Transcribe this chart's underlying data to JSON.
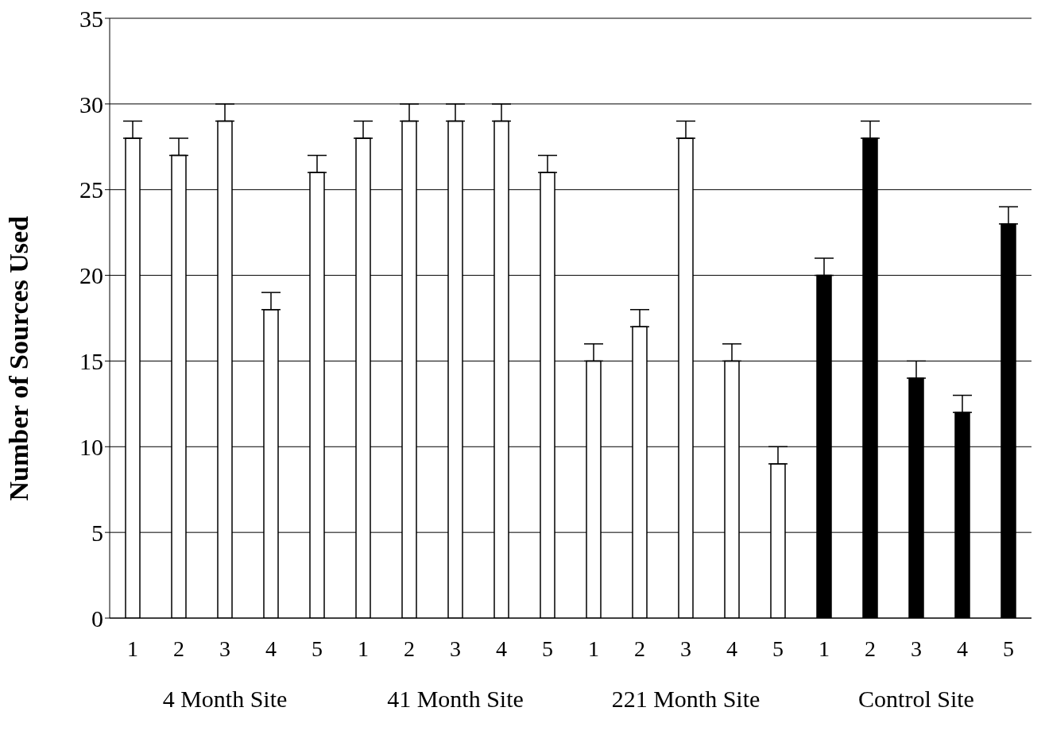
{
  "chart_data": {
    "type": "bar",
    "ylabel": "Number of Sources Used",
    "categories": [
      "1",
      "2",
      "3",
      "4",
      "5",
      "1",
      "2",
      "3",
      "4",
      "5",
      "1",
      "2",
      "3",
      "4",
      "5",
      "1",
      "2",
      "3",
      "4",
      "5"
    ],
    "values": [
      28,
      27,
      29,
      18,
      26,
      28,
      29,
      29,
      29,
      26,
      15,
      17,
      28,
      15,
      9,
      20,
      28,
      14,
      12,
      23
    ],
    "errors": [
      [
        28,
        29
      ],
      [
        27,
        28
      ],
      [
        29,
        30
      ],
      [
        18,
        19
      ],
      [
        26,
        27
      ],
      [
        28,
        29
      ],
      [
        29,
        30
      ],
      [
        29,
        30
      ],
      [
        29,
        30
      ],
      [
        26,
        27
      ],
      [
        15,
        16
      ],
      [
        17,
        18
      ],
      [
        28,
        29
      ],
      [
        15,
        16
      ],
      [
        9,
        10
      ],
      [
        20,
        21
      ],
      [
        28,
        29
      ],
      [
        14,
        15
      ],
      [
        12,
        13
      ],
      [
        23,
        24
      ]
    ],
    "colors": [
      "#ffffff",
      "#ffffff",
      "#ffffff",
      "#ffffff",
      "#ffffff",
      "#ffffff",
      "#ffffff",
      "#ffffff",
      "#ffffff",
      "#ffffff",
      "#ffffff",
      "#ffffff",
      "#ffffff",
      "#ffffff",
      "#ffffff",
      "#000000",
      "#000000",
      "#000000",
      "#000000",
      "#000000"
    ],
    "ylim": [
      0,
      35
    ],
    "yticks": [
      0,
      5,
      10,
      15,
      20,
      25,
      30,
      35
    ],
    "grid": "y",
    "annotations": [
      "4 Month Site",
      "41 Month Site",
      "221 Month Site",
      "Control Site"
    ]
  }
}
